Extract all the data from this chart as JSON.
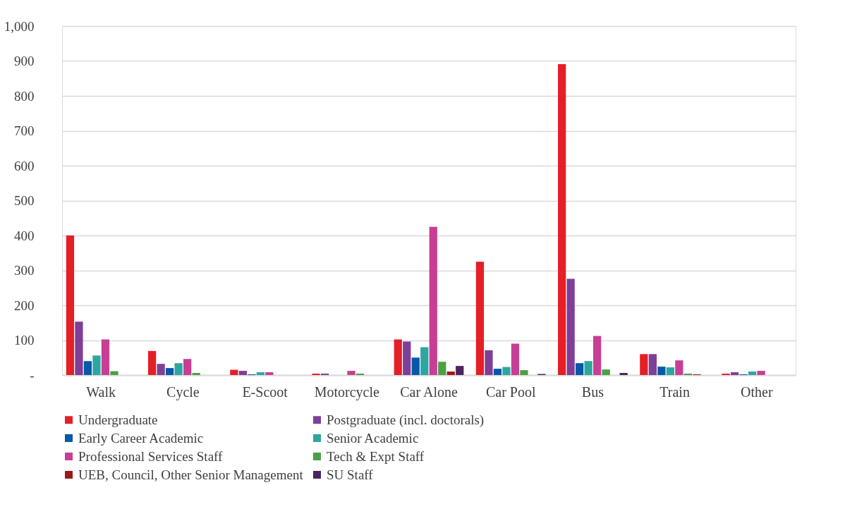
{
  "chart_data": {
    "type": "bar",
    "categories": [
      "Walk",
      "Cycle",
      "E-Scoot",
      "Motorcycle",
      "Car Alone",
      "Car Pool",
      "Bus",
      "Train",
      "Other"
    ],
    "series": [
      {
        "name": "Undergraduate",
        "color": "#e41f26",
        "values": [
          400,
          69,
          15,
          4,
          102,
          325,
          891,
          60,
          4
        ]
      },
      {
        "name": "Postgraduate (incl. doctorals)",
        "color": "#7e3f98",
        "values": [
          153,
          32,
          12,
          4,
          96,
          71,
          276,
          60,
          8
        ]
      },
      {
        "name": "Early Career Academic",
        "color": "#0659a8",
        "values": [
          40,
          20,
          2,
          null,
          50,
          18,
          34,
          24,
          2
        ]
      },
      {
        "name": "Senior Academic",
        "color": "#2ea6a0",
        "values": [
          56,
          34,
          8,
          null,
          80,
          23,
          40,
          22,
          10
        ]
      },
      {
        "name": "Professional Services Staff",
        "color": "#c83e95",
        "values": [
          102,
          46,
          8,
          12,
          425,
          90,
          112,
          42,
          12
        ]
      },
      {
        "name": "Tech & Expt Staff",
        "color": "#4c9f45",
        "values": [
          11,
          6,
          null,
          4,
          38,
          14,
          16,
          4,
          null
        ]
      },
      {
        "name": "UEB, Council, Other Senior Management",
        "color": "#9b1a1a",
        "values": [
          null,
          null,
          null,
          null,
          10,
          null,
          null,
          2,
          null
        ]
      },
      {
        "name": "SU Staff",
        "color": "#4b2460",
        "values": [
          null,
          null,
          null,
          null,
          26,
          3,
          6,
          null,
          null
        ]
      }
    ],
    "ylim": [
      0,
      1000
    ],
    "yticks": [
      {
        "value": 0,
        "label": "-"
      },
      100,
      200,
      300,
      400,
      500,
      600,
      700,
      800,
      900,
      {
        "value": 1000,
        "label": "1,000"
      }
    ],
    "grid": "y",
    "legend": "bottom"
  }
}
